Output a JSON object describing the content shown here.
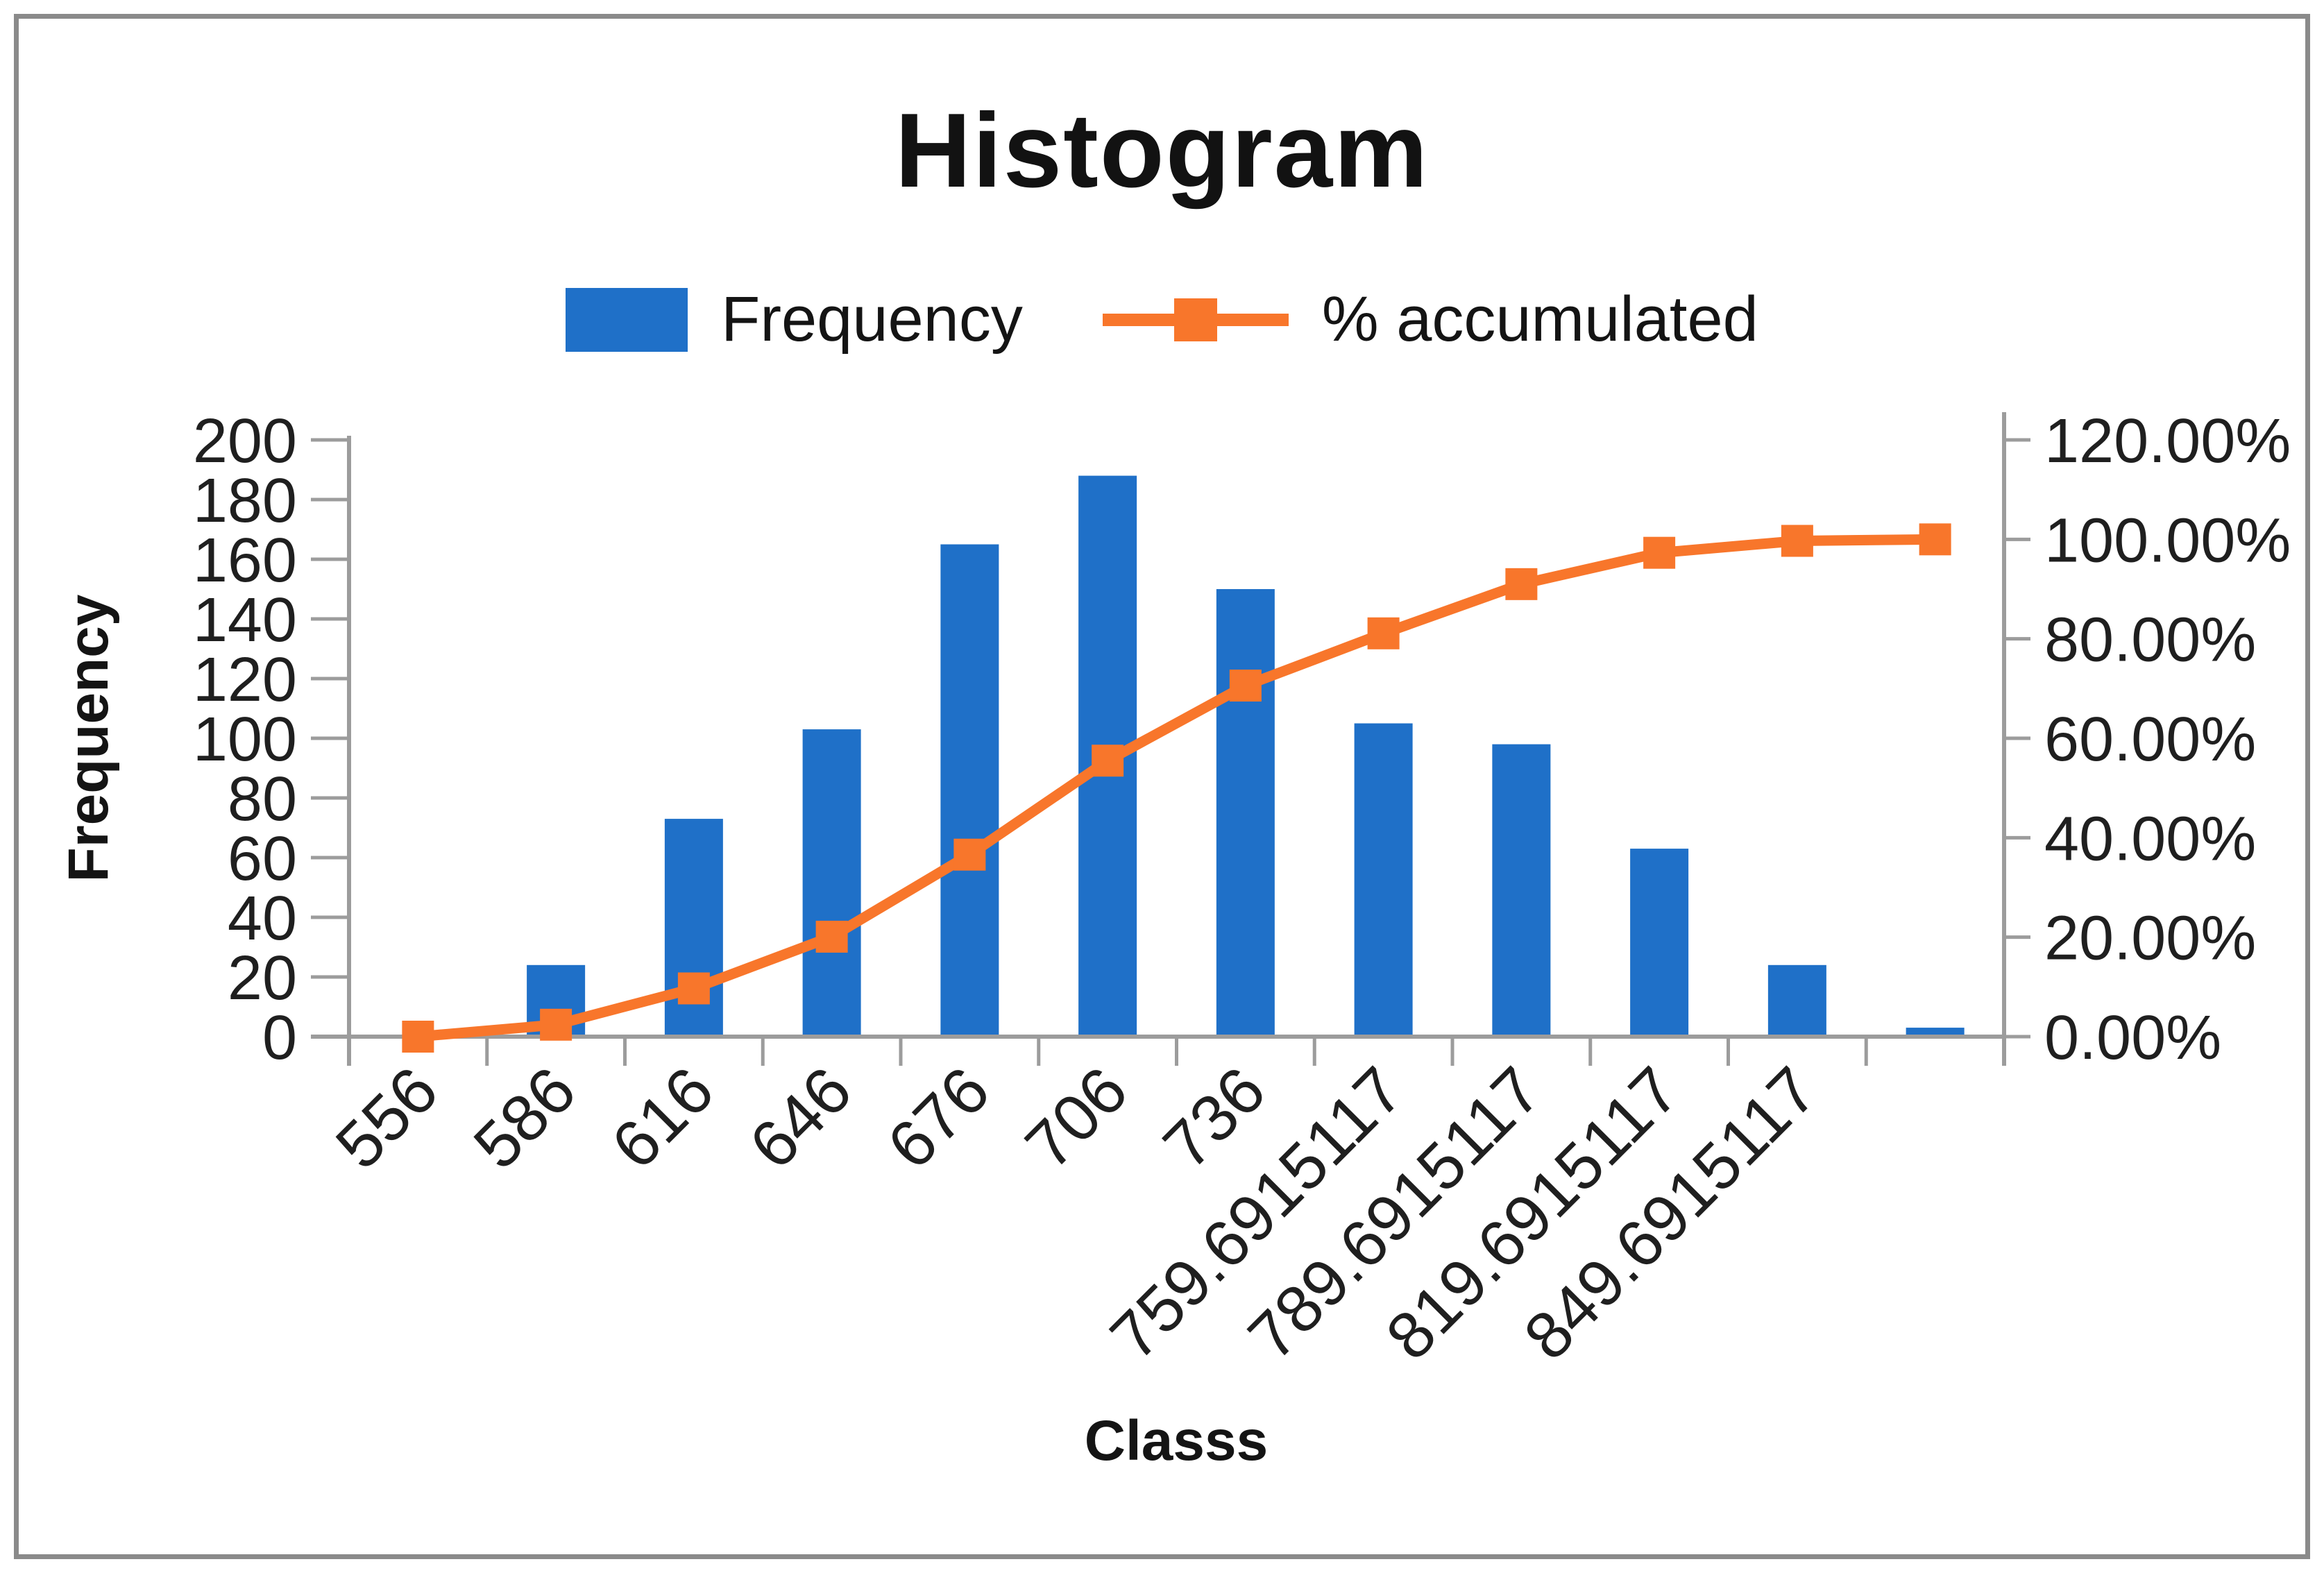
{
  "title": "Histogram",
  "legend": {
    "items": [
      {
        "label": "Frequency",
        "swatch": "bar",
        "color": "#1F70C8"
      },
      {
        "label": "% accumulated",
        "swatch": "line-square-marker",
        "color": "#F8762B"
      }
    ]
  },
  "axes": {
    "left": {
      "title": "Frequency",
      "tick_labels": [
        "0",
        "20",
        "40",
        "60",
        "80",
        "100",
        "120",
        "140",
        "160",
        "180",
        "200"
      ]
    },
    "right": {
      "tick_labels": [
        "0.00%",
        "20.00%",
        "40.00%",
        "60.00%",
        "80.00%",
        "100.00%",
        "120.00%"
      ]
    },
    "x": {
      "title": "Classs"
    }
  },
  "chart_data": {
    "type": "bar",
    "subtype": "pareto-combo (bars + cumulative % line)",
    "title": "Histogram",
    "xlabel": "Classs",
    "ylabel": "Frequency",
    "categories": [
      "556",
      "586",
      "616",
      "646",
      "676",
      "706",
      "736",
      "759.6915117",
      "789.6915117",
      "819.6915117",
      "849.6915117",
      ""
    ],
    "series": [
      {
        "name": "Frequency",
        "type": "bar",
        "axis": "left",
        "color": "#1F70C8",
        "values": [
          0,
          24,
          73,
          103,
          165,
          188,
          150,
          105,
          98,
          63,
          24,
          3
        ]
      },
      {
        "name": "% accumulated",
        "type": "line",
        "axis": "right",
        "color": "#F8762B",
        "marker": "square",
        "values_percent": [
          0.0,
          2.4,
          9.7,
          20.1,
          36.6,
          55.5,
          70.6,
          81.1,
          91.0,
          97.3,
          99.7,
          100.0
        ]
      }
    ],
    "left_axis_range": [
      0,
      200
    ],
    "left_axis_step": 20,
    "right_axis_range_percent": [
      0,
      120
    ],
    "right_axis_step_percent": 20,
    "grid": "off",
    "legend_position": "top-center"
  },
  "colors": {
    "bar": "#1F70C8",
    "line": "#F8762B",
    "axis": "#9C9C9C",
    "text": "#1A1A1A",
    "frame_border": "#8A8A8A"
  }
}
